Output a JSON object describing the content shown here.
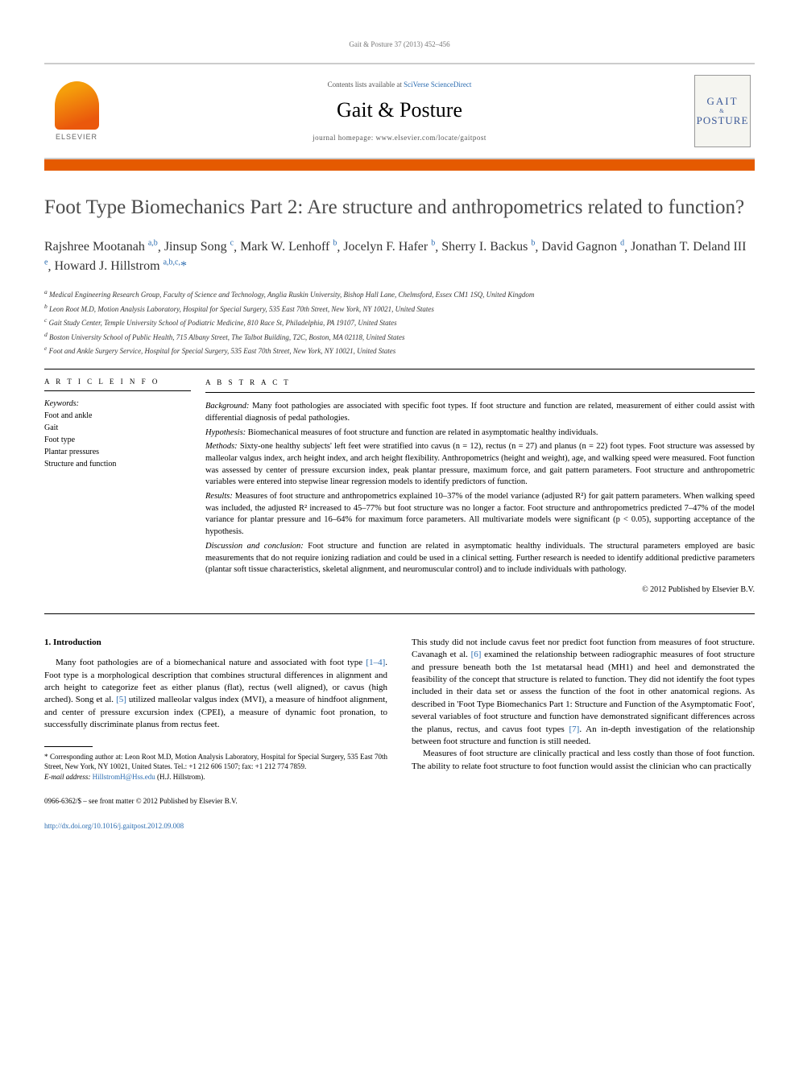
{
  "running_head": "Gait & Posture 37 (2013) 452–456",
  "masthead": {
    "contents_prefix": "Contents lists available at ",
    "contents_link": "SciVerse ScienceDirect",
    "journal": "Gait & Posture",
    "homepage_prefix": "journal homepage: ",
    "homepage": "www.elsevier.com/locate/gaitpost",
    "publisher_logo_text": "ELSEVIER",
    "cover_top": "GAIT",
    "cover_bot": "POSTURE"
  },
  "accent_color": "#e55a00",
  "title": "Foot Type Biomechanics Part 2: Are structure and anthropometrics related to function?",
  "authors_html_parts": [
    {
      "name": "Rajshree Mootanah",
      "sup": "a,b"
    },
    {
      "name": "Jinsup Song",
      "sup": "c"
    },
    {
      "name": "Mark W. Lenhoff",
      "sup": "b"
    },
    {
      "name": "Jocelyn F. Hafer",
      "sup": "b"
    },
    {
      "name": "Sherry I. Backus",
      "sup": "b"
    },
    {
      "name": "David Gagnon",
      "sup": "d"
    },
    {
      "name": "Jonathan T. Deland III",
      "sup": "e"
    },
    {
      "name": "Howard J. Hillstrom",
      "sup": "a,b,c,",
      "star": true
    }
  ],
  "affiliations": [
    "a Medical Engineering Research Group, Faculty of Science and Technology, Anglia Ruskin University, Bishop Hall Lane, Chelmsford, Essex CM1 1SQ, United Kingdom",
    "b Leon Root M.D, Motion Analysis Laboratory, Hospital for Special Surgery, 535 East 70th Street, New York, NY 10021, United States",
    "c Gait Study Center, Temple University School of Podiatric Medicine, 810 Race St, Philadelphia, PA 19107, United States",
    "d Boston University School of Public Health, 715 Albany Street, The Talbot Building, T2C, Boston, MA 02118, United States",
    "e Foot and Ankle Surgery Service, Hospital for Special Surgery, 535 East 70th Street, New York, NY 10021, United States"
  ],
  "article_info": {
    "head": "A R T I C L E   I N F O",
    "kw_head": "Keywords:",
    "keywords": [
      "Foot and ankle",
      "Gait",
      "Foot type",
      "Plantar pressures",
      "Structure and function"
    ]
  },
  "abstract": {
    "head": "A B S T R A C T",
    "sections": [
      {
        "label": "Background:",
        "text": " Many foot pathologies are associated with specific foot types. If foot structure and function are related, measurement of either could assist with differential diagnosis of pedal pathologies."
      },
      {
        "label": "Hypothesis:",
        "text": " Biomechanical measures of foot structure and function are related in asymptomatic healthy individuals."
      },
      {
        "label": "Methods:",
        "text": " Sixty-one healthy subjects' left feet were stratified into cavus (n = 12), rectus (n = 27) and planus (n = 22) foot types. Foot structure was assessed by malleolar valgus index, arch height index, and arch height flexibility. Anthropometrics (height and weight), age, and walking speed were measured. Foot function was assessed by center of pressure excursion index, peak plantar pressure, maximum force, and gait pattern parameters. Foot structure and anthropometric variables were entered into stepwise linear regression models to identify predictors of function."
      },
      {
        "label": "Results:",
        "text": " Measures of foot structure and anthropometrics explained 10–37% of the model variance (adjusted R²) for gait pattern parameters. When walking speed was included, the adjusted R² increased to 45–77% but foot structure was no longer a factor. Foot structure and anthropometrics predicted 7–47% of the model variance for plantar pressure and 16–64% for maximum force parameters. All multivariate models were significant (p < 0.05), supporting acceptance of the hypothesis."
      },
      {
        "label": "Discussion and conclusion:",
        "text": " Foot structure and function are related in asymptomatic healthy individuals. The structural parameters employed are basic measurements that do not require ionizing radiation and could be used in a clinical setting. Further research is needed to identify additional predictive parameters (plantar soft tissue characteristics, skeletal alignment, and neuromuscular control) and to include individuals with pathology."
      }
    ],
    "copyright": "© 2012 Published by Elsevier B.V."
  },
  "body": {
    "section_head": "1. Introduction",
    "col1_p1_a": "Many foot pathologies are of a biomechanical nature and associated with foot type ",
    "col1_ref1": "[1–4]",
    "col1_p1_b": ". Foot type is a morphological description that combines structural differences in alignment and arch height to categorize feet as either planus (flat), rectus (well aligned), or cavus (high arched). Song et al. ",
    "col1_ref2": "[5]",
    "col1_p1_c": " utilized malleolar valgus index (MVI), a measure of hindfoot alignment, and center of pressure excursion index (CPEI), a measure of dynamic foot pronation, to successfully discriminate planus from rectus feet.",
    "col2_p1_a": "This study did not include cavus feet nor predict foot function from measures of foot structure. Cavanagh et al. ",
    "col2_ref1": "[6]",
    "col2_p1_b": " examined the relationship between radiographic measures of foot structure and pressure beneath both the 1st metatarsal head (MH1) and heel and demonstrated the feasibility of the concept that structure is related to function. They did not identify the foot types included in their data set or assess the function of the foot in other anatomical regions. As described in 'Foot Type Biomechanics Part 1: Structure and Function of the Asymptomatic Foot', several variables of foot structure and function have demonstrated significant differences across the planus, rectus, and cavus foot types ",
    "col2_ref2": "[7]",
    "col2_p1_c": ". An in-depth investigation of the relationship between foot structure and function is still needed.",
    "col2_p2": "Measures of foot structure are clinically practical and less costly than those of foot function. The ability to relate foot structure to foot function would assist the clinician who can practically"
  },
  "footnotes": {
    "corr_label": "* Corresponding author at: ",
    "corr_text": "Leon Root M.D, Motion Analysis Laboratory, Hospital for Special Surgery, 535 East 70th Street, New York, NY 10021, United States. Tel.: +1 212 606 1507; fax: +1 212 774 7859.",
    "email_label": "E-mail address: ",
    "email": "HillstromH@Hss.edu",
    "email_tail": " (H.J. Hillstrom)."
  },
  "footer": {
    "line1": "0966-6362/$ – see front matter © 2012 Published by Elsevier B.V.",
    "doi": "http://dx.doi.org/10.1016/j.gaitpost.2012.09.008"
  }
}
